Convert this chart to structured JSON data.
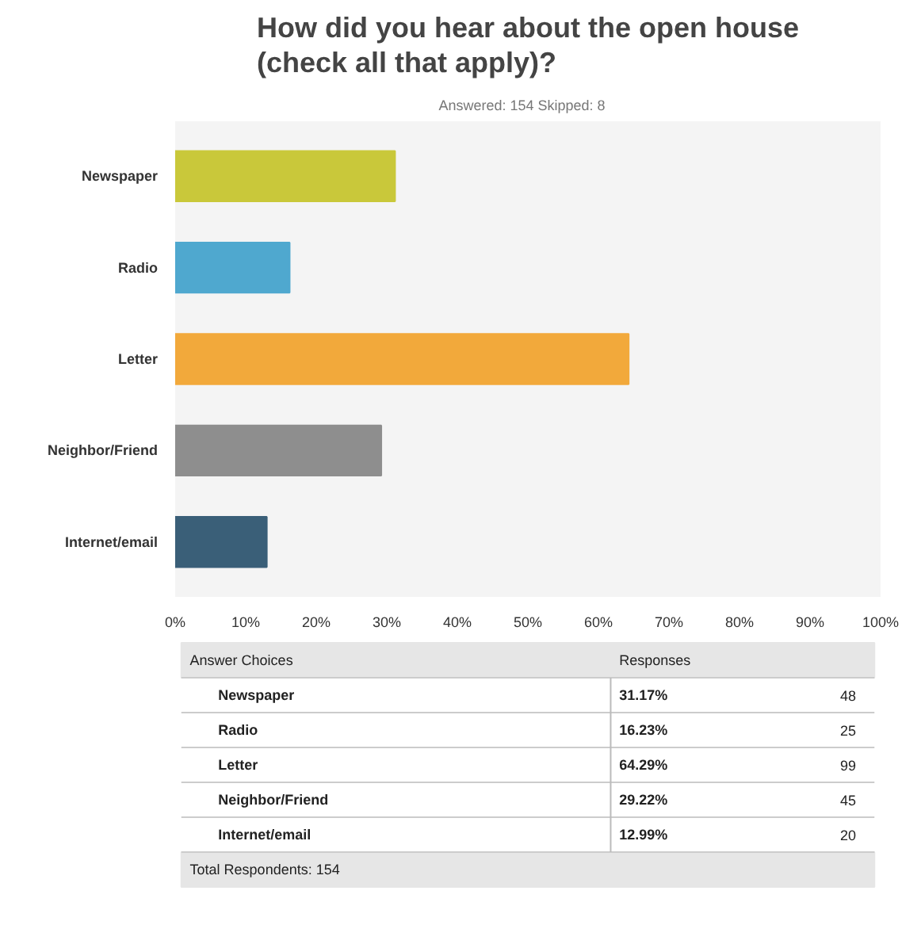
{
  "chart_data": {
    "type": "bar",
    "orientation": "horizontal",
    "title": "How did you hear about the open house (check all that apply)?",
    "subtitle": "Answered: 154    Skipped: 8",
    "categories": [
      "Newspaper",
      "Radio",
      "Letter",
      "Neighbor/Friend",
      "Internet/email"
    ],
    "values": [
      31.17,
      16.23,
      64.29,
      29.22,
      12.99
    ],
    "colors": [
      "#c9c83a",
      "#4fa8cf",
      "#f2a93b",
      "#8e8e8e",
      "#3a5f78"
    ],
    "xlim": [
      0,
      100
    ],
    "xticks": [
      {
        "value": 0,
        "label": "0%"
      },
      {
        "value": 10,
        "label": "10%"
      },
      {
        "value": 20,
        "label": "20%"
      },
      {
        "value": 30,
        "label": "30%"
      },
      {
        "value": 40,
        "label": "40%"
      },
      {
        "value": 50,
        "label": "50%"
      },
      {
        "value": 60,
        "label": "60%"
      },
      {
        "value": 70,
        "label": "70%"
      },
      {
        "value": 80,
        "label": "80%"
      },
      {
        "value": 90,
        "label": "90%"
      },
      {
        "value": 100,
        "label": "100%"
      }
    ],
    "grid": false,
    "annotations": [
      "Answer Choices",
      "Responses",
      "31.17%",
      "16.23%",
      "64.29%",
      "29.22%",
      "12.99%",
      "48",
      "25",
      "99",
      "45",
      "20",
      "Total Respondents: 154"
    ]
  }
}
